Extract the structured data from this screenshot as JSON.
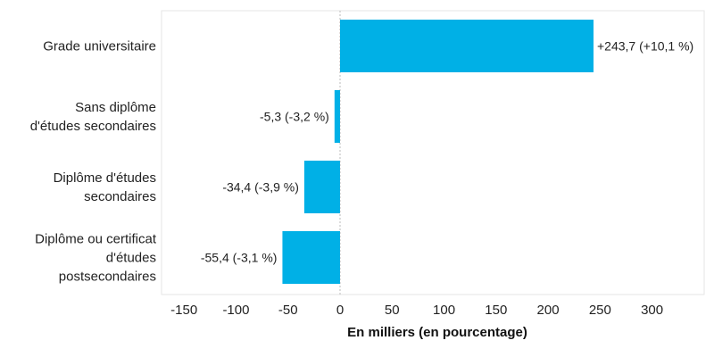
{
  "chart_data": {
    "type": "bar",
    "orientation": "horizontal",
    "categories": [
      [
        "Grade universitaire"
      ],
      [
        "Sans diplôme",
        "d'études secondaires"
      ],
      [
        "Diplôme d'études",
        "secondaires"
      ],
      [
        "Diplôme ou certificat",
        "d'études",
        "postsecondaires"
      ]
    ],
    "values": [
      243.7,
      -5.3,
      -34.4,
      -55.4
    ],
    "data_labels": [
      "+243,7 (+10,1 %)",
      "-5,3 (-3,2 %)",
      "-34,4 (-3,9 %)",
      "-55,4 (-3,1 %)"
    ],
    "xlabel": "En milliers (en pourcentage)",
    "ylabel": "",
    "xticks": [
      -150,
      -100,
      -50,
      0,
      50,
      100,
      150,
      200,
      250,
      300
    ],
    "xtick_labels": [
      "-150",
      "-100",
      "-50",
      "0",
      "50",
      "100",
      "150",
      "200",
      "250",
      "300"
    ],
    "xlim": [
      -175,
      350
    ],
    "bar_color": "#00b0e6",
    "grid": false
  }
}
